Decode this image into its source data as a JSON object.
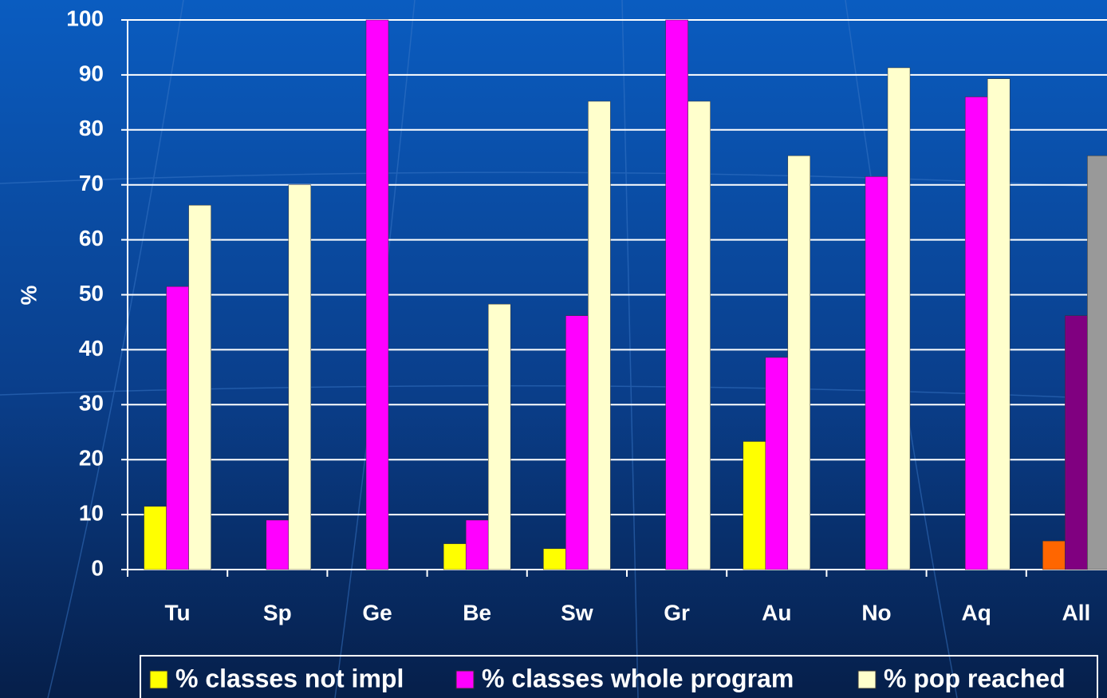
{
  "chart_data": {
    "type": "bar",
    "ylabel": "%",
    "categories": [
      "Tu",
      "Sp",
      "Ge",
      "Be",
      "Sw",
      "Gr",
      "Au",
      "No",
      "Aq",
      "All"
    ],
    "series": [
      {
        "name": "% classes not impl",
        "color": "#ffff00",
        "colors": [
          "#ffff00",
          "#ffff00",
          "#ffff00",
          "#ffff00",
          "#ffff00",
          "#ffff00",
          "#ffff00",
          "#ffff00",
          "#ffff00",
          "#ff6600"
        ],
        "values": [
          11.5,
          0,
          0,
          4.7,
          3.8,
          0,
          23.3,
          0,
          0,
          5.2
        ]
      },
      {
        "name": "% classes whole program",
        "color": "#ff00ff",
        "colors": [
          "#ff00ff",
          "#ff00ff",
          "#ff00ff",
          "#ff00ff",
          "#ff00ff",
          "#ff00ff",
          "#ff00ff",
          "#ff00ff",
          "#ff00ff",
          "#800080"
        ],
        "values": [
          51.5,
          9,
          100,
          9,
          46.2,
          100,
          38.6,
          71.5,
          86,
          46.2
        ]
      },
      {
        "name": "% pop reached",
        "color": "#ffffcc",
        "colors": [
          "#ffffcc",
          "#ffffcc",
          "#ffffcc",
          "#ffffcc",
          "#ffffcc",
          "#ffffcc",
          "#ffffcc",
          "#ffffcc",
          "#ffffcc",
          "#999999"
        ],
        "values": [
          66.3,
          70,
          0,
          48.3,
          85.2,
          85.2,
          75.3,
          91.3,
          89.3,
          75.3
        ]
      }
    ],
    "ylim": [
      0,
      100
    ],
    "yticks": [
      0,
      10,
      20,
      30,
      40,
      50,
      60,
      70,
      80,
      90,
      100
    ],
    "grid": true
  }
}
